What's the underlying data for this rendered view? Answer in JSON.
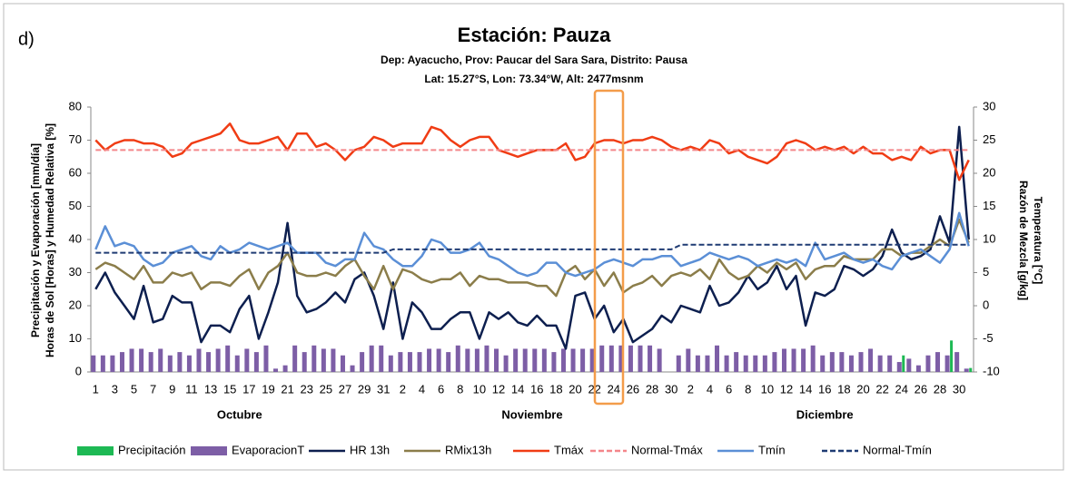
{
  "chart_data": {
    "type": "combo",
    "panel": "d)",
    "title": "Estación: Pauza",
    "subtitle": [
      "Dep: Ayacucho, Prov: Paucar del Sara Sara, Distrito: Pausa",
      "Lat: 15.27°S, Lon: 73.34°W, Alt: 2477msnm"
    ],
    "ylabel": [
      "Precipitación y Evaporación  [mm/día]",
      "Horas de Sol [Horas]  y Humedad Relativa [%]"
    ],
    "y2label": [
      "Temperatura [°C]",
      "Razón de Mezcla [g/kg]"
    ],
    "months": [
      "Octubre",
      "Noviembre",
      "Diciembre"
    ],
    "categories": [
      "1",
      null,
      "3",
      null,
      "5",
      null,
      "7",
      null,
      "9",
      null,
      "11",
      null,
      "13",
      null,
      "15",
      null,
      "17",
      null,
      "19",
      null,
      "21",
      null,
      "23",
      null,
      "25",
      null,
      "27",
      null,
      "29",
      null,
      "31",
      null,
      "2",
      null,
      "4",
      null,
      "6",
      null,
      "8",
      null,
      "10",
      null,
      "12",
      null,
      "14",
      null,
      "16",
      null,
      "18",
      null,
      "20",
      null,
      "22",
      null,
      "24",
      null,
      "26",
      null,
      "28",
      null,
      "30",
      null,
      "2",
      null,
      "4",
      null,
      "6",
      null,
      "8",
      null,
      "10",
      null,
      "12",
      null,
      "14",
      null,
      "16",
      null,
      "18",
      null,
      "20",
      null,
      "22",
      null,
      "24",
      null,
      "26",
      null,
      "28",
      null,
      "30",
      null
    ],
    "ylim": [
      0,
      80
    ],
    "yticks": [
      0,
      10,
      20,
      30,
      40,
      50,
      60,
      70,
      80
    ],
    "y2lim": [
      -10,
      30
    ],
    "y2ticks": [
      -10,
      -5,
      0,
      5,
      10,
      15,
      20,
      25,
      30
    ],
    "grid": false,
    "series": [
      {
        "name": "Precipitación",
        "kind": "bar",
        "color": "#1db954",
        "values": [
          0,
          0,
          0,
          0,
          0,
          0,
          0,
          0,
          0,
          0,
          0,
          0,
          0,
          0,
          0,
          0,
          0,
          0,
          0,
          0,
          0,
          0,
          0,
          0,
          0,
          0,
          0,
          0,
          0,
          0,
          0,
          0,
          0,
          0,
          0,
          0,
          0,
          0,
          0,
          0,
          0,
          0,
          0,
          0,
          0,
          0,
          0,
          0,
          0,
          0,
          0,
          0,
          0,
          0,
          0,
          0,
          0,
          0,
          0,
          0,
          0,
          0,
          0,
          0,
          0,
          0,
          0,
          0,
          0,
          0,
          0,
          0,
          0,
          0,
          0,
          0,
          0,
          0,
          0,
          0,
          0,
          0,
          0,
          0,
          5,
          0,
          0,
          0,
          0,
          9.5,
          0,
          1.2
        ]
      },
      {
        "name": "EvaporacionT",
        "kind": "bar",
        "color": "#7d5ea6",
        "values": [
          5,
          5,
          5,
          6,
          7,
          7,
          6,
          7,
          5,
          6,
          5,
          7,
          6,
          7,
          8,
          5,
          7,
          6,
          8,
          1,
          2,
          8,
          6,
          8,
          7,
          7,
          5,
          2,
          6,
          8,
          8,
          5,
          6,
          6,
          6,
          7,
          7,
          6,
          8,
          7,
          7,
          8,
          7,
          5,
          7,
          7,
          7,
          7,
          6,
          7,
          7,
          7,
          7,
          8,
          8,
          8,
          8,
          8,
          8,
          7,
          0,
          5,
          7,
          5,
          5,
          8,
          5,
          6,
          5,
          5,
          5,
          6,
          7,
          7,
          7,
          8,
          5,
          6,
          6,
          5,
          6,
          7,
          5,
          5,
          3,
          4,
          2,
          5,
          6,
          5,
          6,
          1
        ]
      },
      {
        "name": "HR 13h",
        "kind": "line",
        "color": "#0d1f4f",
        "values": [
          25,
          30,
          24,
          20,
          16,
          26,
          15,
          16,
          23,
          21,
          21,
          9,
          14,
          14,
          12,
          19,
          23,
          10,
          18,
          27,
          45,
          23,
          18,
          19,
          21,
          24,
          21,
          28,
          30,
          23,
          13,
          27,
          10,
          21,
          18,
          13,
          13,
          16,
          18,
          18,
          10,
          18,
          16,
          18,
          15,
          14,
          17,
          14,
          14,
          7,
          23,
          24,
          16,
          20,
          12,
          16,
          9,
          11,
          13,
          17,
          15,
          20,
          19,
          18,
          26,
          20,
          21,
          24,
          29,
          25,
          27,
          32,
          25,
          29,
          14,
          24,
          23,
          25,
          32,
          31,
          29,
          31,
          35,
          43,
          36,
          34,
          35,
          37,
          47,
          39,
          74,
          40
        ]
      },
      {
        "name": "RMix13h",
        "kind": "line",
        "axis": "y2",
        "color": "#8b7d4a",
        "values": [
          5.5,
          6.5,
          6,
          5,
          4,
          6,
          3.5,
          3.5,
          5,
          4.5,
          5,
          2.5,
          3.5,
          3.5,
          3,
          4.5,
          5.5,
          2.5,
          5,
          6,
          8,
          5,
          4.5,
          4.5,
          5,
          4.5,
          6,
          7,
          4.5,
          2.5,
          6,
          2.5,
          5.5,
          5,
          4,
          3.5,
          4,
          4,
          5,
          3,
          4.5,
          4,
          4,
          3.5,
          3.5,
          3.5,
          3,
          3,
          1.5,
          5,
          6,
          4,
          5.5,
          3,
          5,
          2,
          3,
          3.5,
          4.5,
          3,
          4.5,
          5,
          4.5,
          5.5,
          4,
          7,
          5,
          4,
          4.5,
          6,
          5,
          6.5,
          5.5,
          6.5,
          4,
          5.5,
          6,
          6,
          7.5,
          7,
          7,
          7,
          8.5,
          8.5,
          7.5,
          8,
          8,
          9,
          10,
          9,
          13,
          9.5
        ]
      },
      {
        "name": "Tmáx",
        "kind": "line",
        "axis": "y2",
        "color": "#f03c14",
        "values": [
          25,
          23.5,
          24.5,
          25,
          25,
          24.5,
          24.5,
          24,
          22.5,
          23,
          24.5,
          25,
          25.5,
          26,
          27.5,
          25,
          24.5,
          24.5,
          25,
          25.5,
          23.5,
          26,
          26,
          24,
          24.5,
          23.5,
          22,
          23.5,
          24,
          25.5,
          25,
          24,
          24.5,
          24.5,
          24.5,
          27,
          26.5,
          25,
          24,
          25,
          25.5,
          25.5,
          23.5,
          23,
          22.5,
          23,
          23.5,
          23.5,
          23.5,
          24.5,
          22,
          22.5,
          24.5,
          25,
          25,
          24.5,
          25,
          25,
          25.5,
          25,
          24,
          23.5,
          24,
          23.5,
          25,
          24.5,
          23,
          23.5,
          22.5,
          22,
          21.5,
          22.5,
          24.5,
          25,
          24.5,
          23.5,
          24,
          23.5,
          24,
          23,
          24,
          23,
          23,
          22,
          22.5,
          22,
          24,
          23,
          23.5,
          23.5,
          19,
          22
        ]
      },
      {
        "name": "Normal-Tmáx",
        "kind": "line",
        "dashed": true,
        "axis": "y2",
        "color": "#f4868a",
        "values": [
          23.5,
          23.5,
          23.5,
          23.5,
          23.5,
          23.5,
          23.5,
          23.5,
          23.5,
          23.5,
          23.5,
          23.5,
          23.5,
          23.5,
          23.5,
          23.5,
          23.5,
          23.5,
          23.5,
          23.5,
          23.5,
          23.5,
          23.5,
          23.5,
          23.5,
          23.5,
          23.5,
          23.5,
          23.5,
          23.5,
          23.5,
          23.5,
          23.5,
          23.5,
          23.5,
          23.5,
          23.5,
          23.5,
          23.5,
          23.5,
          23.5,
          23.5,
          23.5,
          23.5,
          23.5,
          23.5,
          23.5,
          23.5,
          23.5,
          23.5,
          23.5,
          23.5,
          23.5,
          23.5,
          23.5,
          23.5,
          23.5,
          23.5,
          23.5,
          23.5,
          23.5,
          23.5,
          23.5,
          23.5,
          23.5,
          23.5,
          23.5,
          23.5,
          23.5,
          23.5,
          23.5,
          23.5,
          23.5,
          23.5,
          23.5,
          23.5,
          23.5,
          23.5,
          23.5,
          23.5,
          23.5,
          23.5,
          23.5,
          23.5,
          23.5,
          23.5,
          23.5,
          23.5,
          23.5,
          23.5,
          23.5,
          23.5
        ]
      },
      {
        "name": "Tmín",
        "kind": "line",
        "axis": "y2",
        "color": "#5b8fd6",
        "values": [
          8.5,
          12,
          9,
          9.5,
          9,
          7,
          6,
          6.5,
          8,
          8.5,
          9,
          7.5,
          7,
          9,
          8,
          8.5,
          9.5,
          9,
          8.5,
          9,
          9.5,
          8,
          8,
          8,
          6.5,
          6,
          7,
          7,
          11,
          9,
          8.5,
          7,
          6,
          6,
          7.5,
          10,
          9.5,
          8,
          8,
          8.5,
          9.5,
          7.5,
          7,
          6,
          5,
          4.5,
          5,
          6.5,
          6.5,
          5,
          4.5,
          5,
          5.5,
          6.5,
          7,
          6.5,
          6,
          7,
          7,
          7.5,
          7.5,
          6,
          6.5,
          7,
          8,
          7.5,
          7,
          7.5,
          7,
          6,
          6.5,
          7,
          6.5,
          7,
          6,
          9.5,
          7,
          7.5,
          8,
          7,
          6.5,
          7,
          6,
          5.5,
          7.5,
          8,
          8.5,
          7.5,
          6.5,
          8.5,
          14,
          9
        ]
      },
      {
        "name": "Normal-Tmín",
        "kind": "line",
        "dashed": true,
        "axis": "y2",
        "color": "#1f3b73",
        "values": [
          8,
          8,
          8,
          8,
          8,
          8,
          8,
          8,
          8,
          8,
          8,
          8,
          8,
          8,
          8,
          8,
          8,
          8,
          8,
          8,
          8,
          8,
          8,
          8,
          8,
          8,
          8,
          8,
          8,
          8,
          8,
          8.5,
          8.5,
          8.5,
          8.5,
          8.5,
          8.5,
          8.5,
          8.5,
          8.5,
          8.5,
          8.5,
          8.5,
          8.5,
          8.5,
          8.5,
          8.5,
          8.5,
          8.5,
          8.5,
          8.5,
          8.5,
          8.5,
          8.5,
          8.5,
          8.5,
          8.5,
          8.5,
          8.5,
          8.5,
          8.5,
          9.2,
          9.2,
          9.2,
          9.2,
          9.2,
          9.2,
          9.2,
          9.2,
          9.2,
          9.2,
          9.2,
          9.2,
          9.2,
          9.2,
          9.2,
          9.2,
          9.2,
          9.2,
          9.2,
          9.2,
          9.2,
          9.2,
          9.2,
          9.2,
          9.2,
          9.2,
          9.2,
          9.2,
          9.2,
          9.2,
          9.2
        ]
      }
    ]
  }
}
